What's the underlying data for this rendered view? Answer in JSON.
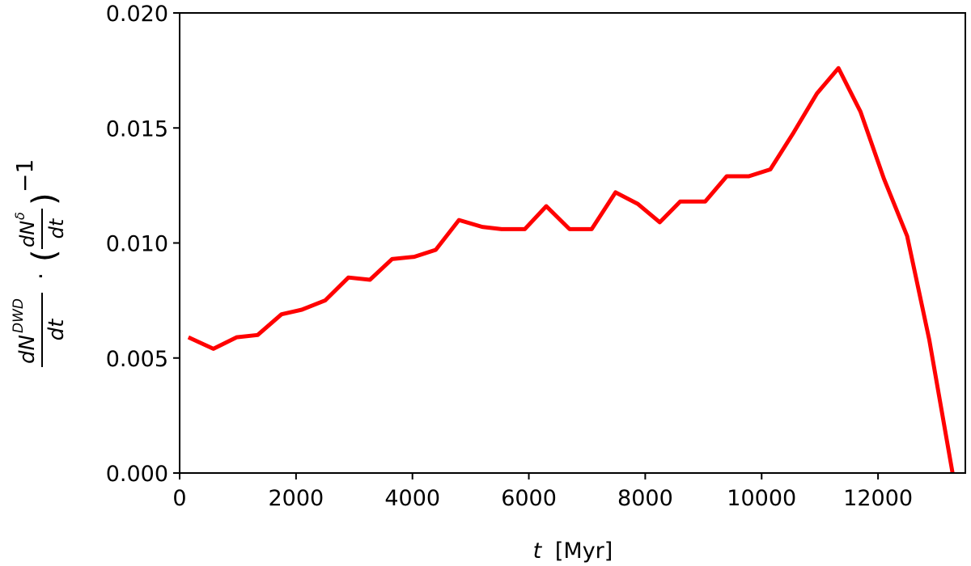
{
  "chart_data": {
    "type": "line",
    "xlabel_var": "t",
    "xlabel_unit": "[Myr]",
    "ylabel": {
      "num1": "dN",
      "sup1": "DWD",
      "den1": "dt",
      "dot": "·",
      "open": "(",
      "num2": "dN",
      "sup2": "δ",
      "den2": "dt",
      "close": ")",
      "exp": "−1"
    },
    "xlim": [
      0,
      13500
    ],
    "ylim": [
      0,
      0.02
    ],
    "x_ticks": [
      0,
      2000,
      4000,
      6000,
      8000,
      10000,
      12000
    ],
    "x_tick_labels": [
      "0",
      "2000",
      "4000",
      "6000",
      "8000",
      "10000",
      "12000"
    ],
    "y_ticks": [
      0,
      0.005,
      0.01,
      0.015,
      0.02
    ],
    "y_tick_labels": [
      "0.000",
      "0.005",
      "0.010",
      "0.015",
      "0.020"
    ],
    "grid": false,
    "series": [
      {
        "color": "#ff0000",
        "x": [
          150,
          580,
          980,
          1340,
          1750,
          2100,
          2500,
          2900,
          3270,
          3650,
          4030,
          4400,
          4800,
          5200,
          5530,
          5930,
          6300,
          6700,
          7080,
          7490,
          7870,
          8250,
          8600,
          9030,
          9400,
          9780,
          10150,
          10550,
          10950,
          11320,
          11700,
          12100,
          12500,
          12880,
          13280
        ],
        "y": [
          0.0059,
          0.0054,
          0.0059,
          0.006,
          0.0069,
          0.0071,
          0.0075,
          0.0085,
          0.0084,
          0.0093,
          0.0094,
          0.0097,
          0.011,
          0.0107,
          0.0106,
          0.0106,
          0.0116,
          0.0106,
          0.0106,
          0.0122,
          0.0117,
          0.0109,
          0.0118,
          0.0118,
          0.0129,
          0.0129,
          0.0132,
          0.0148,
          0.0165,
          0.0176,
          0.0157,
          0.0128,
          0.0103,
          0.0058,
          0.0
        ]
      }
    ]
  }
}
